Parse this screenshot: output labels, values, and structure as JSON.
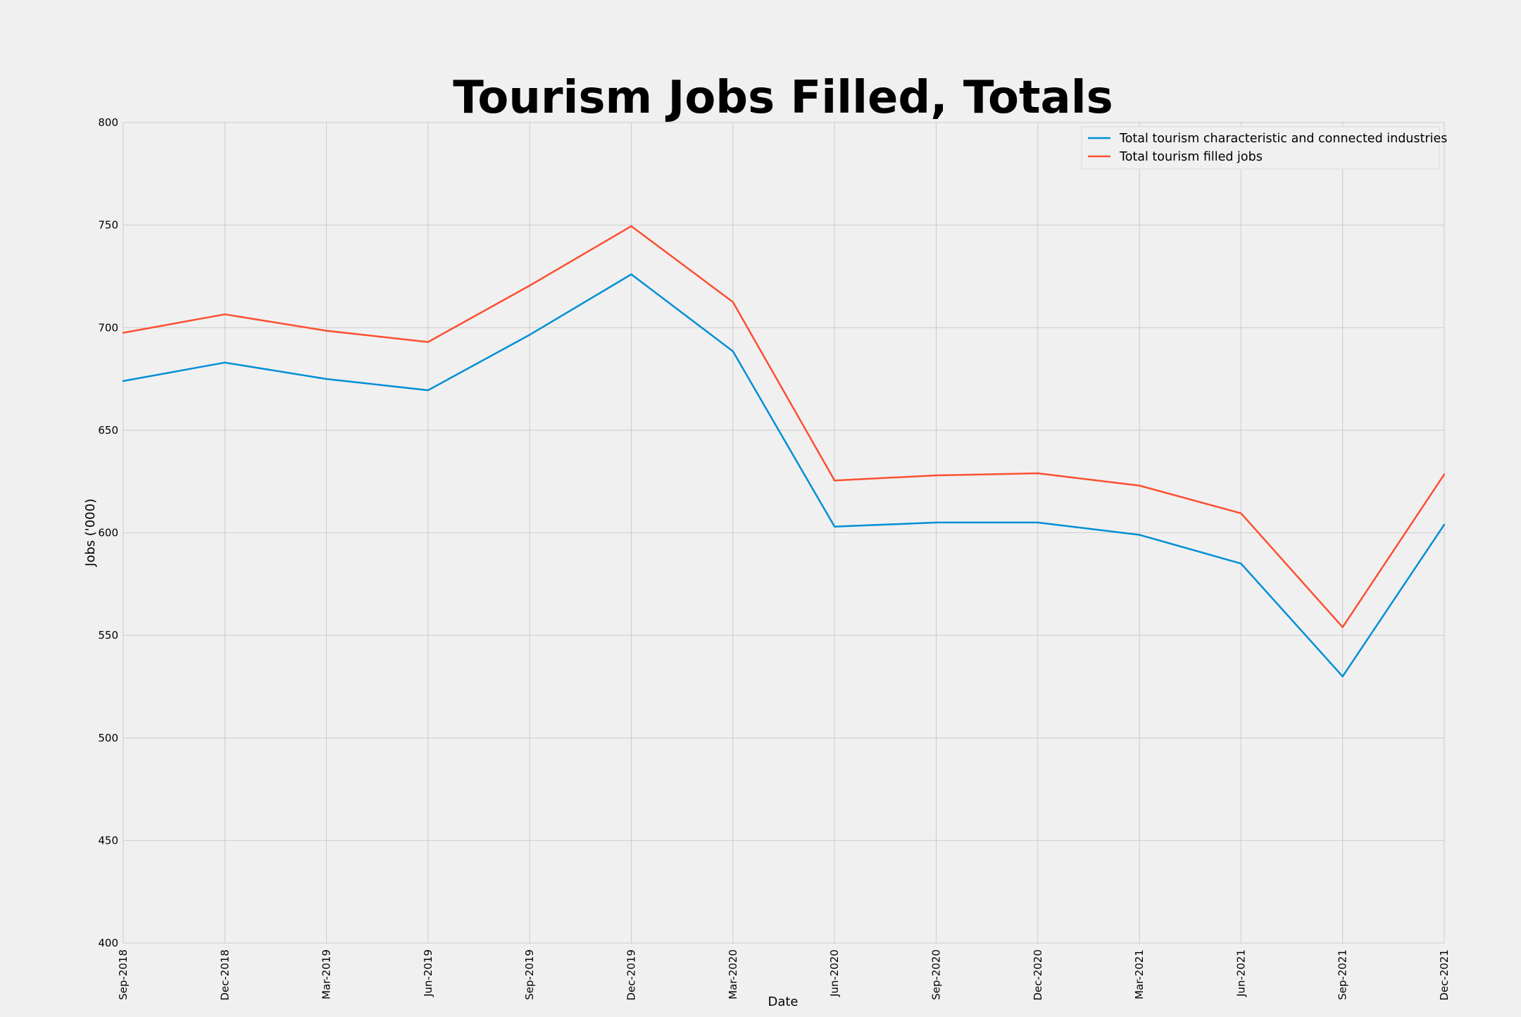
{
  "chart_data": {
    "type": "line",
    "title": "Tourism Jobs Filled, Totals",
    "xlabel": "Date",
    "ylabel": "Jobs ('000)",
    "categories": [
      "Sep-2018",
      "Dec-2018",
      "Mar-2019",
      "Jun-2019",
      "Sep-2019",
      "Dec-2019",
      "Mar-2020",
      "Jun-2020",
      "Sep-2020",
      "Dec-2020",
      "Mar-2021",
      "Jun-2021",
      "Sep-2021",
      "Dec-2021"
    ],
    "ylim": [
      400,
      800
    ],
    "yticks": [
      "400",
      "450",
      "500",
      "550",
      "600",
      "650",
      "700",
      "750",
      "800"
    ],
    "grid": true,
    "legend_position": "top-right",
    "series": [
      {
        "name": "Total tourism characteristic and connected industries",
        "color": "#008fd5",
        "values": [
          674,
          683,
          675,
          669.5,
          696.5,
          726,
          688.5,
          603,
          605,
          605,
          599,
          585,
          530,
          604
        ]
      },
      {
        "name": "Total tourism filled jobs",
        "color": "#fc4f30",
        "values": [
          697.5,
          706.5,
          698.5,
          693,
          720.5,
          749.5,
          712.5,
          625.5,
          628,
          629,
          623,
          609.5,
          554,
          628.5
        ]
      }
    ]
  }
}
